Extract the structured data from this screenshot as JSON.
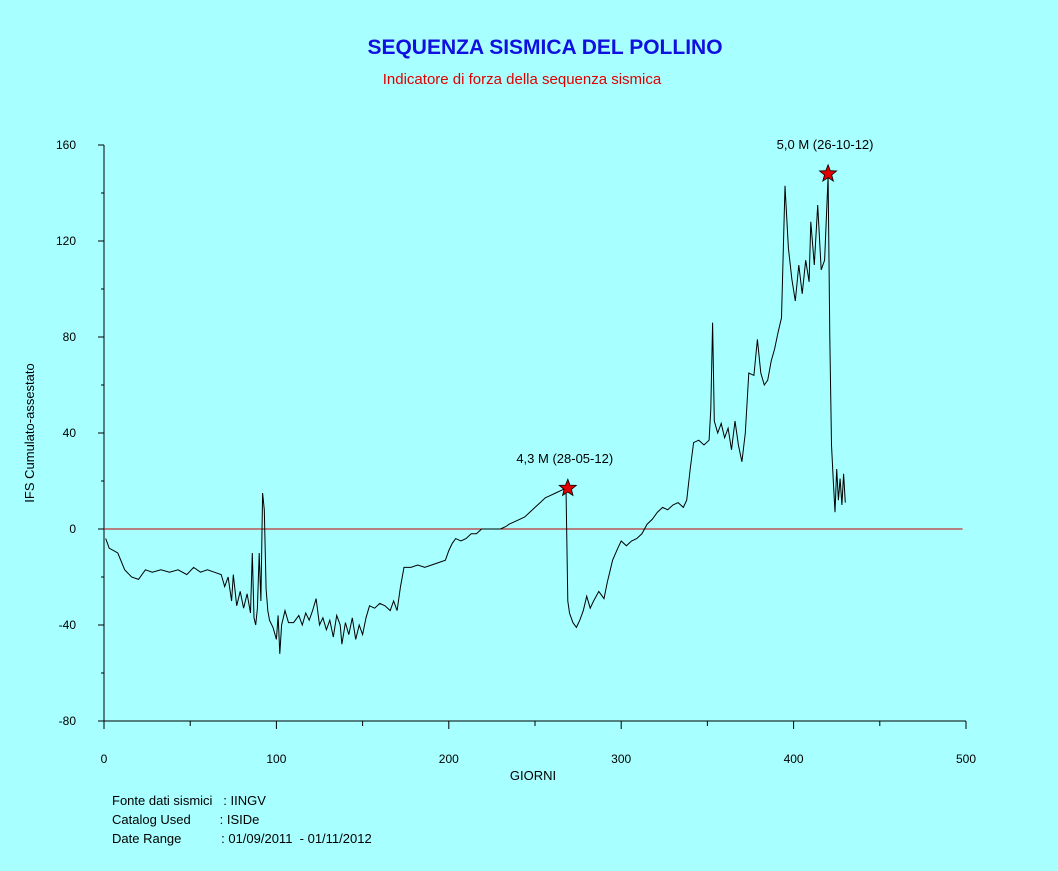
{
  "chart_data": {
    "type": "line",
    "title": "SEQUENZA SISMICA DEL POLLINO",
    "subtitle": "Indicatore di forza della sequenza sismica",
    "xlabel": "GIORNI",
    "ylabel": "IFS Cumulato-assestato",
    "xlim": [
      0,
      500
    ],
    "ylim": [
      -80,
      160
    ],
    "x_ticks": [
      "0",
      "100",
      "200",
      "300",
      "400",
      "500"
    ],
    "y_ticks": [
      "-80",
      "-40",
      "0",
      "40",
      "80",
      "120",
      "160"
    ],
    "grid": false,
    "reference_line": {
      "y": 0,
      "x_range": [
        0,
        498
      ],
      "color": "#c00000"
    },
    "series": [
      {
        "color": "#000000",
        "points": [
          [
            1,
            -4
          ],
          [
            3,
            -8
          ],
          [
            8,
            -10
          ],
          [
            12,
            -17
          ],
          [
            16,
            -20
          ],
          [
            20,
            -21
          ],
          [
            24,
            -17
          ],
          [
            28,
            -18
          ],
          [
            33,
            -17
          ],
          [
            38,
            -18
          ],
          [
            43,
            -17
          ],
          [
            48,
            -19
          ],
          [
            52,
            -16
          ],
          [
            56,
            -18
          ],
          [
            60,
            -17
          ],
          [
            64,
            -18
          ],
          [
            68,
            -19
          ],
          [
            70,
            -24
          ],
          [
            72,
            -20
          ],
          [
            74,
            -30
          ],
          [
            75,
            -19
          ],
          [
            77,
            -32
          ],
          [
            79,
            -26
          ],
          [
            81,
            -33
          ],
          [
            83,
            -27
          ],
          [
            85,
            -35
          ],
          [
            86,
            -10
          ],
          [
            87,
            -37
          ],
          [
            88,
            -40
          ],
          [
            89,
            -33
          ],
          [
            90,
            -10
          ],
          [
            91,
            -30
          ],
          [
            92,
            15
          ],
          [
            93,
            8
          ],
          [
            94,
            -25
          ],
          [
            95,
            -34
          ],
          [
            96,
            -38
          ],
          [
            98,
            -41
          ],
          [
            100,
            -46
          ],
          [
            101,
            -36
          ],
          [
            102,
            -52
          ],
          [
            103,
            -40
          ],
          [
            105,
            -34
          ],
          [
            107,
            -39
          ],
          [
            110,
            -39
          ],
          [
            113,
            -36
          ],
          [
            115,
            -40
          ],
          [
            117,
            -35
          ],
          [
            119,
            -38
          ],
          [
            121,
            -34
          ],
          [
            123,
            -29
          ],
          [
            125,
            -40
          ],
          [
            127,
            -37
          ],
          [
            129,
            -42
          ],
          [
            131,
            -38
          ],
          [
            133,
            -45
          ],
          [
            135,
            -36
          ],
          [
            137,
            -40
          ],
          [
            138,
            -48
          ],
          [
            140,
            -39
          ],
          [
            142,
            -44
          ],
          [
            144,
            -37
          ],
          [
            146,
            -46
          ],
          [
            148,
            -40
          ],
          [
            150,
            -44
          ],
          [
            152,
            -37
          ],
          [
            154,
            -32
          ],
          [
            157,
            -33
          ],
          [
            160,
            -31
          ],
          [
            163,
            -32
          ],
          [
            166,
            -34
          ],
          [
            168,
            -30
          ],
          [
            170,
            -34
          ],
          [
            172,
            -24
          ],
          [
            174,
            -16
          ],
          [
            178,
            -16
          ],
          [
            182,
            -15
          ],
          [
            186,
            -16
          ],
          [
            190,
            -15
          ],
          [
            194,
            -14
          ],
          [
            198,
            -13
          ],
          [
            200,
            -9
          ],
          [
            202,
            -6
          ],
          [
            204,
            -4
          ],
          [
            207,
            -5
          ],
          [
            210,
            -4
          ],
          [
            213,
            -2
          ],
          [
            216,
            -2
          ],
          [
            219,
            0
          ],
          [
            222,
            0
          ],
          [
            226,
            0
          ],
          [
            230,
            0
          ],
          [
            233,
            1
          ],
          [
            235,
            2
          ],
          [
            238,
            3
          ],
          [
            241,
            4
          ],
          [
            244,
            5
          ],
          [
            247,
            7
          ],
          [
            250,
            9
          ],
          [
            253,
            11
          ],
          [
            256,
            13
          ],
          [
            259,
            14
          ],
          [
            262,
            15
          ],
          [
            265,
            16
          ],
          [
            268,
            17
          ],
          [
            269,
            -30
          ],
          [
            270,
            -35
          ],
          [
            272,
            -39
          ],
          [
            274,
            -41
          ],
          [
            276,
            -38
          ],
          [
            278,
            -34
          ],
          [
            280,
            -28
          ],
          [
            282,
            -33
          ],
          [
            284,
            -30
          ],
          [
            287,
            -26
          ],
          [
            290,
            -29
          ],
          [
            292,
            -22
          ],
          [
            295,
            -13
          ],
          [
            298,
            -8
          ],
          [
            300,
            -5
          ],
          [
            303,
            -7
          ],
          [
            306,
            -5
          ],
          [
            309,
            -4
          ],
          [
            312,
            -2
          ],
          [
            315,
            2
          ],
          [
            318,
            4
          ],
          [
            321,
            7
          ],
          [
            324,
            9
          ],
          [
            327,
            8
          ],
          [
            330,
            10
          ],
          [
            333,
            11
          ],
          [
            336,
            9
          ],
          [
            338,
            12
          ],
          [
            340,
            25
          ],
          [
            342,
            36
          ],
          [
            345,
            37
          ],
          [
            348,
            35
          ],
          [
            351,
            37
          ],
          [
            352,
            50
          ],
          [
            353,
            86
          ],
          [
            354,
            45
          ],
          [
            356,
            40
          ],
          [
            358,
            44
          ],
          [
            360,
            38
          ],
          [
            362,
            42
          ],
          [
            364,
            33
          ],
          [
            366,
            45
          ],
          [
            368,
            35
          ],
          [
            370,
            28
          ],
          [
            372,
            40
          ],
          [
            374,
            65
          ],
          [
            377,
            64
          ],
          [
            379,
            79
          ],
          [
            381,
            65
          ],
          [
            383,
            60
          ],
          [
            385,
            62
          ],
          [
            387,
            70
          ],
          [
            389,
            75
          ],
          [
            391,
            82
          ],
          [
            393,
            88
          ],
          [
            395,
            143
          ],
          [
            397,
            117
          ],
          [
            399,
            104
          ],
          [
            401,
            95
          ],
          [
            403,
            110
          ],
          [
            405,
            98
          ],
          [
            407,
            112
          ],
          [
            409,
            103
          ],
          [
            410,
            128
          ],
          [
            412,
            110
          ],
          [
            414,
            135
          ],
          [
            416,
            108
          ],
          [
            418,
            112
          ],
          [
            420,
            147
          ],
          [
            421,
            80
          ],
          [
            422,
            35
          ],
          [
            423,
            20
          ],
          [
            424,
            7
          ],
          [
            425,
            25
          ],
          [
            426,
            12
          ],
          [
            427,
            21
          ],
          [
            428,
            10
          ],
          [
            429,
            23
          ],
          [
            430,
            11
          ]
        ]
      }
    ],
    "annotations": [
      {
        "text": "4,3 M (28-05-12)",
        "x": 269,
        "y": 17,
        "marker": "star"
      },
      {
        "text": "5,0 M (26-10-12)",
        "x": 420,
        "y": 148,
        "marker": "star"
      }
    ],
    "marker_color": "#e00000",
    "info": {
      "line1": "Fonte dati sismici   : IINGV",
      "line2": "Catalog Used        : ISIDe",
      "line3": "Date Range           : 01/09/2011  - 01/11/2012"
    }
  }
}
